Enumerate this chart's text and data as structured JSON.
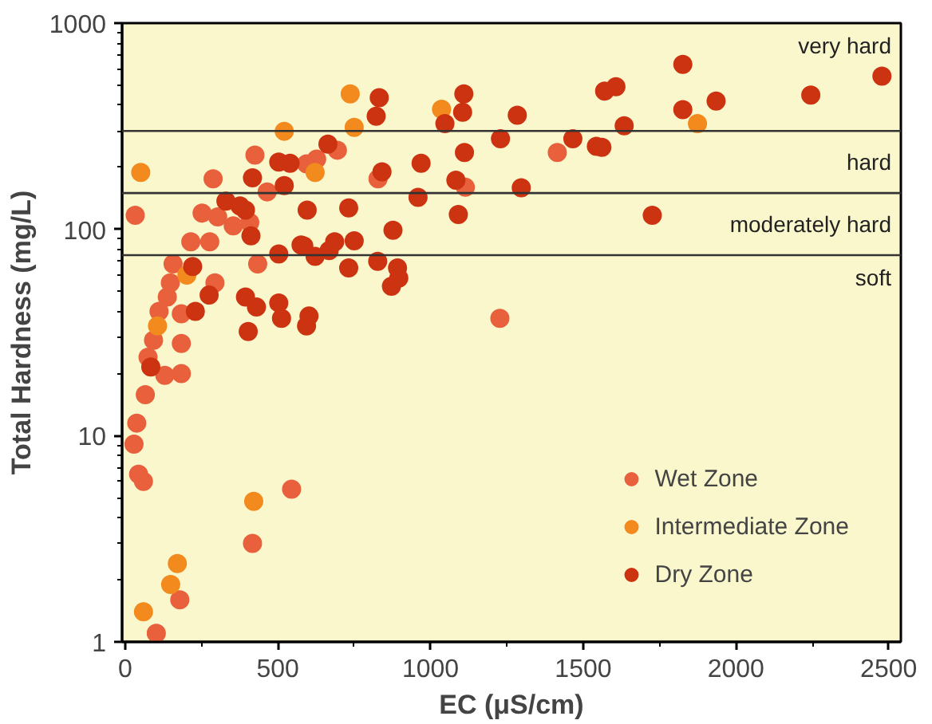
{
  "chart_data": {
    "type": "scatter",
    "xlabel": "EC (μS/cm)",
    "ylabel": "Total Hardness (mg/L)",
    "log": "y",
    "xlim": [
      -10,
      2540
    ],
    "ylim": [
      1,
      1000
    ],
    "xticks": [
      0,
      500,
      1000,
      1500,
      2000,
      2500
    ],
    "yticks": [
      1,
      10,
      100,
      1000
    ],
    "grid": false,
    "legend": "bottom right",
    "marker": "circle",
    "ref_lines": [
      {
        "axis": "y",
        "value": 75,
        "color": "#333333"
      },
      {
        "axis": "y",
        "value": 150,
        "color": "#333333"
      },
      {
        "axis": "y",
        "value": 300,
        "color": "#333333"
      }
    ],
    "annotations": [
      "very hard",
      "hard",
      "moderately hard",
      "soft"
    ],
    "series": [
      {
        "name": "Wet Zone",
        "color": "#e8603c",
        "x": [
          33,
          425,
          288,
          465,
          627,
          695,
          252,
          303,
          354,
          408,
          215,
          277,
          434,
          294,
          157,
          148,
          138,
          111,
          184,
          93,
          75,
          130,
          184,
          184,
          66,
          38,
          29,
          44,
          60,
          179,
          102,
          417,
          545,
          1415,
          828,
          1114,
          1227,
          594
        ],
        "values": [
          117,
          229,
          176,
          152,
          219,
          242,
          120,
          115,
          104,
          108,
          87,
          87,
          68,
          55,
          68,
          55,
          47,
          40,
          39,
          29,
          24,
          19.6,
          20,
          28,
          15.8,
          11.5,
          9.1,
          6.5,
          6.0,
          1.6,
          1.1,
          3.0,
          5.5,
          236,
          176,
          160,
          37,
          208
        ]
      },
      {
        "name": "Intermediate Zone",
        "color": "#f28a1e",
        "x": [
          51,
          521,
          622,
          106,
          202,
          421,
          60,
          149,
          171,
          737,
          750,
          1036,
          1874
        ],
        "values": [
          189,
          299,
          189,
          34,
          60,
          4.8,
          1.4,
          1.9,
          2.4,
          454,
          312,
          382,
          326
        ]
      },
      {
        "name": "Dry Zone",
        "color": "#cc3311",
        "x": [
          417,
          503,
          540,
          521,
          664,
          330,
          376,
          394,
          596,
          412,
          503,
          576,
          622,
          686,
          221,
          275,
          394,
          430,
          403,
          503,
          512,
          594,
          602,
          84,
          230,
          832,
          822,
          1109,
          1105,
          1047,
          1284,
          1570,
          1607,
          1634,
          1229,
          1466,
          1543,
          1561,
          1111,
          841,
          969,
          1083,
          1297,
          959,
          732,
          1091,
          877,
          585,
          750,
          668,
          827,
          732,
          892,
          896,
          872,
          1826,
          1826,
          1935,
          2245,
          2478,
          1726
        ],
        "values": [
          178,
          212,
          209,
          163,
          259,
          137,
          130,
          124,
          124,
          93,
          76,
          84,
          74,
          87,
          66,
          48,
          47,
          42,
          32,
          44,
          37,
          34,
          38,
          21.5,
          40,
          435,
          354,
          454,
          370,
          326,
          358,
          468,
          492,
          318,
          275,
          275,
          253,
          250,
          236,
          190,
          209,
          173,
          159,
          143,
          127,
          118,
          99,
          83,
          88,
          79,
          70,
          65,
          65,
          58,
          53,
          631,
          381,
          419,
          448,
          553,
          117
        ]
      }
    ]
  }
}
